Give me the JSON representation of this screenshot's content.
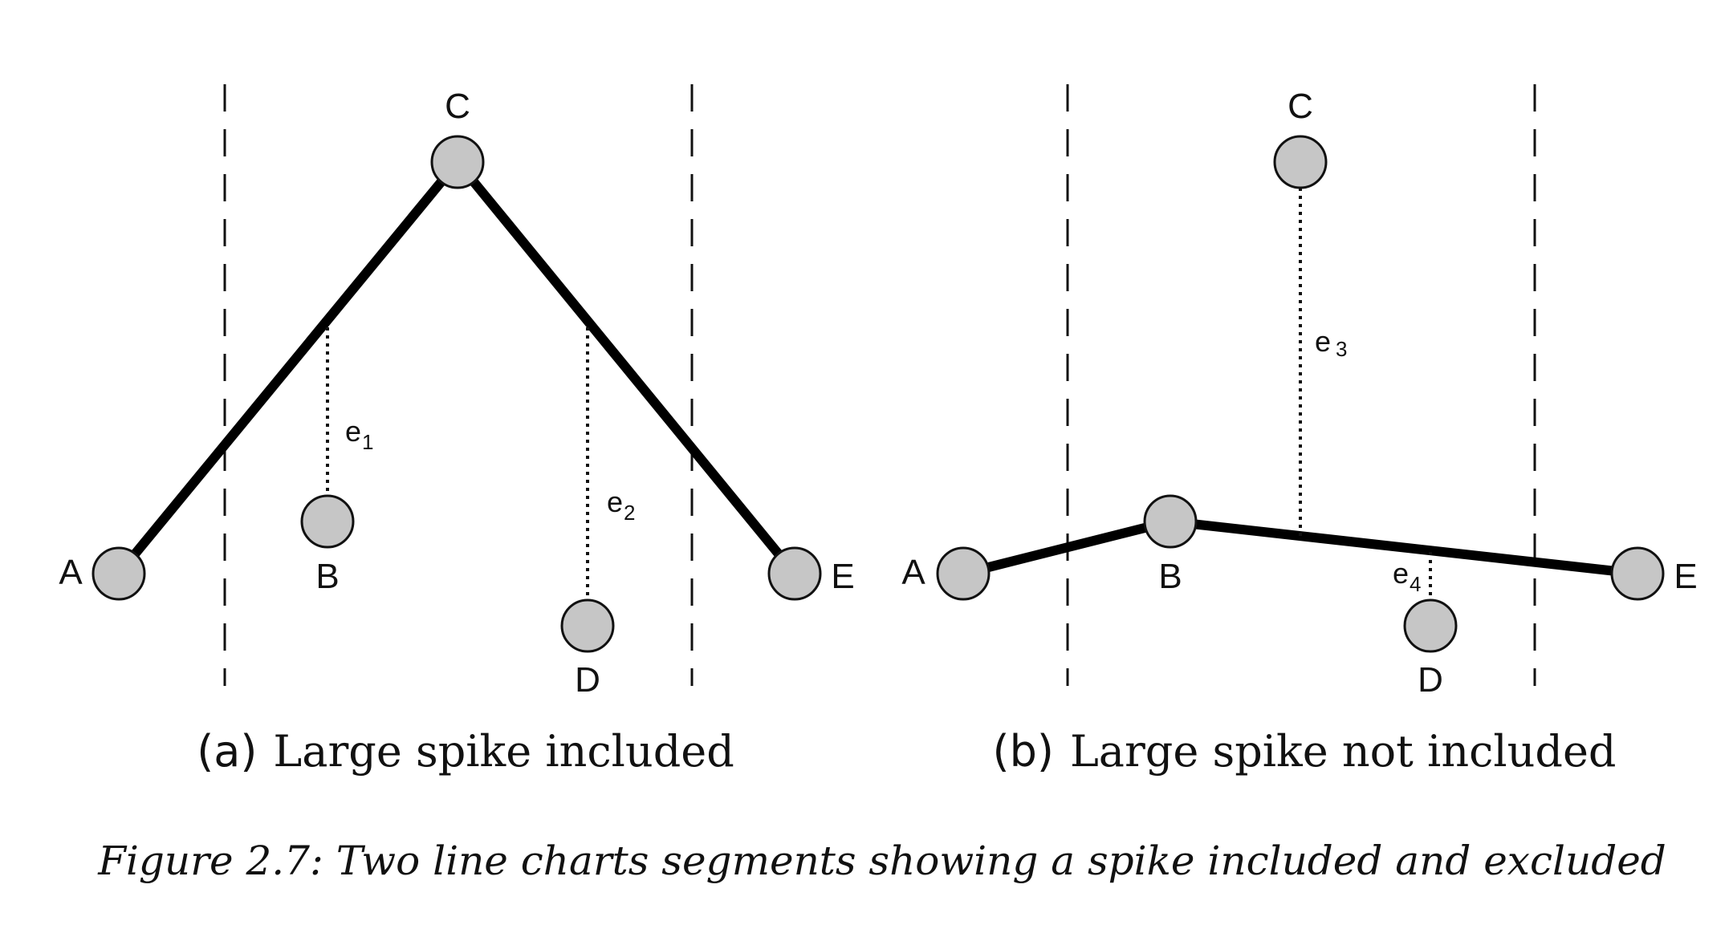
{
  "panel_a": {
    "points": {
      "A": "A",
      "B": "B",
      "C": "C",
      "D": "D",
      "E": "E"
    },
    "errors": [
      {
        "base": "e",
        "sub": "1"
      },
      {
        "base": "e",
        "sub": "2"
      }
    ],
    "tag": "(a)",
    "caption": "Large spike included"
  },
  "panel_b": {
    "points": {
      "A": "A",
      "B": "B",
      "C": "C",
      "D": "D",
      "E": "E"
    },
    "errors": [
      {
        "base": "e",
        "sub": "3"
      },
      {
        "base": "e",
        "sub": "4"
      }
    ],
    "tag": "(b)",
    "caption": "Large spike not included"
  },
  "figure_caption": "Figure 2.7: Two line charts segments showing a spike included and excluded",
  "colors": {
    "node_fill": "#c6c6c6",
    "line": "#000000"
  }
}
